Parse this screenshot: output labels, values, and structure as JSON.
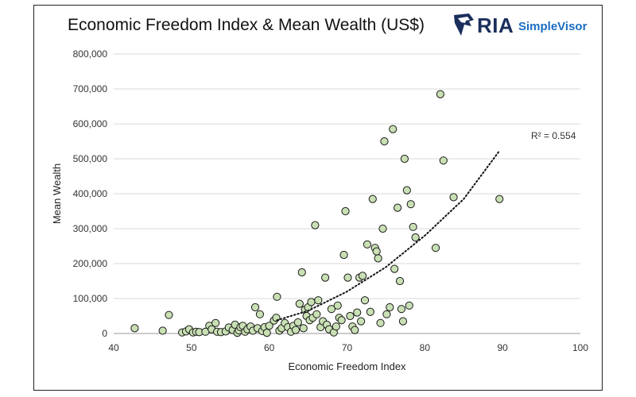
{
  "header": {
    "title": "Economic Freedom Index & Mean Wealth (US$)"
  },
  "logo": {
    "mark": "RIA",
    "name": "SimpleVisor",
    "icon": "eagle-head-icon"
  },
  "chart_data": {
    "type": "scatter",
    "xlabel": "Economic Freedom Index",
    "ylabel": "Mean Wealth",
    "xlim": [
      40,
      100
    ],
    "ylim": [
      0,
      800000
    ],
    "x_ticks": [
      40,
      50,
      60,
      70,
      80,
      90,
      100
    ],
    "y_ticks": [
      0,
      100000,
      200000,
      300000,
      400000,
      500000,
      600000,
      700000,
      800000
    ],
    "y_tick_labels": [
      "0",
      "100,000",
      "200,000",
      "300,000",
      "400,000",
      "500,000",
      "600,000",
      "700,000",
      "800,000"
    ],
    "grid": "horizontal",
    "marker_fill": "#c9e0b4",
    "marker_edge": "#1a1a1a",
    "trendline": {
      "type": "exponential",
      "style": "dotted",
      "label": "R² = 0.554",
      "x_range": [
        61,
        89.5
      ],
      "points": [
        [
          61,
          38000
        ],
        [
          65,
          65000
        ],
        [
          70,
          120000
        ],
        [
          75,
          190000
        ],
        [
          80,
          280000
        ],
        [
          85,
          385000
        ],
        [
          89.5,
          520000
        ]
      ]
    },
    "points": [
      [
        42.7,
        15000
      ],
      [
        46.3,
        8000
      ],
      [
        47.1,
        53000
      ],
      [
        48.8,
        3000
      ],
      [
        49.3,
        6000
      ],
      [
        49.7,
        12000
      ],
      [
        50.2,
        3000
      ],
      [
        50.6,
        5000
      ],
      [
        51.0,
        4000
      ],
      [
        51.8,
        5000
      ],
      [
        52.3,
        22000
      ],
      [
        52.6,
        12000
      ],
      [
        53.1,
        30000
      ],
      [
        53.3,
        5000
      ],
      [
        53.8,
        4000
      ],
      [
        54.4,
        6000
      ],
      [
        54.8,
        17000
      ],
      [
        55.3,
        10000
      ],
      [
        55.6,
        25000
      ],
      [
        55.9,
        2000
      ],
      [
        56.1,
        9000
      ],
      [
        56.3,
        18000
      ],
      [
        56.6,
        22000
      ],
      [
        56.9,
        5000
      ],
      [
        57.2,
        12000
      ],
      [
        57.6,
        20000
      ],
      [
        57.9,
        8000
      ],
      [
        58.2,
        75000
      ],
      [
        58.5,
        15000
      ],
      [
        58.8,
        55000
      ],
      [
        59.1,
        7000
      ],
      [
        59.4,
        18000
      ],
      [
        59.7,
        2000
      ],
      [
        60.0,
        22000
      ],
      [
        60.6,
        37000
      ],
      [
        60.9,
        45000
      ],
      [
        61.0,
        105000
      ],
      [
        61.3,
        8000
      ],
      [
        61.6,
        15000
      ],
      [
        62.0,
        30000
      ],
      [
        62.4,
        18000
      ],
      [
        62.8,
        5000
      ],
      [
        63.1,
        22000
      ],
      [
        63.4,
        10000
      ],
      [
        63.7,
        32000
      ],
      [
        63.9,
        85000
      ],
      [
        64.2,
        175000
      ],
      [
        64.4,
        15000
      ],
      [
        64.6,
        68000
      ],
      [
        64.8,
        50000
      ],
      [
        65.0,
        75000
      ],
      [
        65.2,
        38000
      ],
      [
        65.4,
        90000
      ],
      [
        65.6,
        45000
      ],
      [
        65.9,
        310000
      ],
      [
        66.1,
        55000
      ],
      [
        66.3,
        95000
      ],
      [
        66.6,
        18000
      ],
      [
        66.9,
        35000
      ],
      [
        67.2,
        160000
      ],
      [
        67.4,
        25000
      ],
      [
        67.7,
        12000
      ],
      [
        68.0,
        70000
      ],
      [
        68.3,
        3000
      ],
      [
        68.6,
        20000
      ],
      [
        68.8,
        80000
      ],
      [
        69.0,
        45000
      ],
      [
        69.3,
        38000
      ],
      [
        69.6,
        225000
      ],
      [
        69.8,
        350000
      ],
      [
        70.1,
        160000
      ],
      [
        70.4,
        50000
      ],
      [
        70.7,
        20000
      ],
      [
        71.0,
        10000
      ],
      [
        71.3,
        60000
      ],
      [
        71.6,
        160000
      ],
      [
        71.8,
        35000
      ],
      [
        72.0,
        165000
      ],
      [
        72.3,
        95000
      ],
      [
        72.6,
        255000
      ],
      [
        73.0,
        62000
      ],
      [
        73.3,
        385000
      ],
      [
        73.6,
        245000
      ],
      [
        73.8,
        235000
      ],
      [
        74.0,
        215000
      ],
      [
        74.3,
        30000
      ],
      [
        74.6,
        300000
      ],
      [
        74.8,
        550000
      ],
      [
        75.1,
        55000
      ],
      [
        75.5,
        75000
      ],
      [
        75.9,
        585000
      ],
      [
        76.1,
        185000
      ],
      [
        76.5,
        360000
      ],
      [
        76.8,
        150000
      ],
      [
        77.0,
        70000
      ],
      [
        77.2,
        35000
      ],
      [
        77.4,
        500000
      ],
      [
        77.7,
        410000
      ],
      [
        78.0,
        80000
      ],
      [
        78.2,
        370000
      ],
      [
        78.5,
        305000
      ],
      [
        78.8,
        275000
      ],
      [
        81.4,
        245000
      ],
      [
        82.0,
        685000
      ],
      [
        82.4,
        495000
      ],
      [
        83.7,
        390000
      ],
      [
        89.6,
        385000
      ]
    ]
  }
}
